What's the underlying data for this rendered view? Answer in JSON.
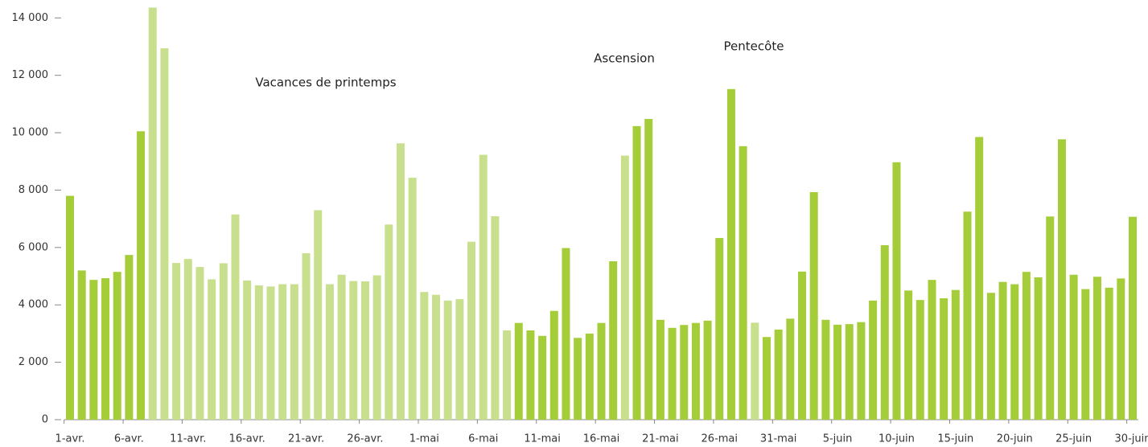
{
  "chart_data": {
    "type": "bar",
    "categories": [
      "1-avr.",
      null,
      null,
      null,
      null,
      "6-avr.",
      null,
      null,
      null,
      null,
      "11-avr.",
      null,
      null,
      null,
      null,
      "16-avr.",
      null,
      null,
      null,
      null,
      "21-avr.",
      null,
      null,
      null,
      null,
      "26-avr.",
      null,
      null,
      null,
      null,
      "1-mai",
      null,
      null,
      null,
      null,
      "6-mai",
      null,
      null,
      null,
      null,
      "11-mai",
      null,
      null,
      null,
      null,
      "16-mai",
      null,
      null,
      null,
      null,
      "21-mai",
      null,
      null,
      null,
      null,
      "26-mai",
      null,
      null,
      null,
      null,
      "31-mai",
      null,
      null,
      null,
      null,
      "5-juin",
      null,
      null,
      null,
      null,
      "10-juin",
      null,
      null,
      null,
      null,
      "15-juin",
      null,
      null,
      null,
      null,
      "20-juin",
      null,
      null,
      null,
      null,
      "25-juin",
      null,
      null,
      null,
      null,
      "30-juin"
    ],
    "values": [
      7800,
      5200,
      4870,
      4930,
      5150,
      5740,
      10050,
      14360,
      12940,
      5460,
      5600,
      5320,
      4890,
      5450,
      7150,
      4850,
      4680,
      4640,
      4720,
      4720,
      5800,
      7300,
      4720,
      5050,
      4830,
      4820,
      5030,
      6800,
      9630,
      8430,
      4450,
      4350,
      4150,
      4200,
      6200,
      9230,
      7090,
      3110,
      3370,
      3110,
      2920,
      3790,
      5980,
      2850,
      3000,
      3370,
      5520,
      9200,
      10230,
      10480,
      3480,
      3200,
      3300,
      3370,
      3450,
      6330,
      11520,
      9530,
      3380,
      2880,
      3140,
      3520,
      5160,
      7930,
      3480,
      3310,
      3330,
      3400,
      4150,
      6080,
      8970,
      4500,
      4170,
      4870,
      4230,
      4520,
      7250,
      9850,
      4420,
      4800,
      4720,
      5150,
      4960,
      7080,
      9770,
      5050,
      4550,
      4980,
      4600,
      4920,
      7070
    ],
    "colors": [
      "#a5cd39",
      "#a5cd39",
      "#a5cd39",
      "#a5cd39",
      "#a5cd39",
      "#a5cd39",
      "#a5cd39",
      "#c8df8e",
      "#c8df8e",
      "#c8df8e",
      "#c8df8e",
      "#c8df8e",
      "#c8df8e",
      "#c8df8e",
      "#c8df8e",
      "#c8df8e",
      "#c8df8e",
      "#c8df8e",
      "#c8df8e",
      "#c8df8e",
      "#c8df8e",
      "#c8df8e",
      "#c8df8e",
      "#c8df8e",
      "#c8df8e",
      "#c8df8e",
      "#c8df8e",
      "#c8df8e",
      "#c8df8e",
      "#c8df8e",
      "#c8df8e",
      "#c8df8e",
      "#c8df8e",
      "#c8df8e",
      "#c8df8e",
      "#c8df8e",
      "#c8df8e",
      "#c8df8e",
      "#a5cd39",
      "#a5cd39",
      "#a5cd39",
      "#a5cd39",
      "#a5cd39",
      "#a5cd39",
      "#a5cd39",
      "#a5cd39",
      "#a5cd39",
      "#c8df8e",
      "#a5cd39",
      "#a5cd39",
      "#a5cd39",
      "#a5cd39",
      "#a5cd39",
      "#a5cd39",
      "#a5cd39",
      "#a5cd39",
      "#a5cd39",
      "#a5cd39",
      "#c8df8e",
      "#a5cd39",
      "#a5cd39",
      "#a5cd39",
      "#a5cd39",
      "#a5cd39",
      "#a5cd39",
      "#a5cd39",
      "#a5cd39",
      "#a5cd39",
      "#a5cd39",
      "#a5cd39",
      "#a5cd39",
      "#a5cd39",
      "#a5cd39",
      "#a5cd39",
      "#a5cd39",
      "#a5cd39",
      "#a5cd39",
      "#a5cd39",
      "#a5cd39",
      "#a5cd39",
      "#a5cd39",
      "#a5cd39",
      "#a5cd39",
      "#a5cd39",
      "#a5cd39",
      "#a5cd39",
      "#a5cd39",
      "#a5cd39",
      "#a5cd39",
      "#a5cd39",
      "#a5cd39"
    ],
    "annotations": [
      "Vacances de printemps",
      "Ascension",
      "Pentecôte"
    ],
    "ylim": [
      0,
      14400
    ],
    "yticks": [
      0,
      {
        "value": 2000,
        "label": "2 000"
      },
      {
        "value": 4000,
        "label": "4 000"
      },
      {
        "value": 6000,
        "label": "6 000"
      },
      {
        "value": 8000,
        "label": "8 000"
      },
      {
        "value": 10000,
        "label": "10 000"
      },
      {
        "value": 12000,
        "label": "12 000"
      },
      {
        "value": 14000,
        "label": "14 000"
      }
    ],
    "grid": false
  }
}
